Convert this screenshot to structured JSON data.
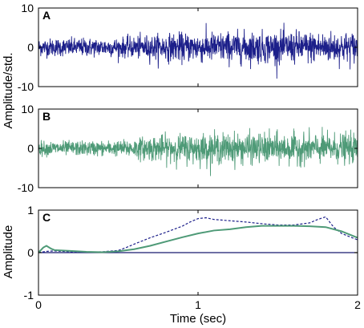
{
  "chart_data": [
    {
      "panel": "A",
      "type": "line",
      "description": "noise trace, amplitude normalized by std; envelope grows after ~0.6 s",
      "color": "#1c1f8a",
      "xlim": [
        0,
        2
      ],
      "ylim": [
        -10,
        10
      ],
      "yticks": [
        -10,
        0,
        10
      ],
      "ytick_labels": [
        "-10",
        "0",
        "10"
      ],
      "envelope_x": [
        0,
        0.5,
        0.7,
        1.0,
        1.5,
        2.0
      ],
      "envelope_y": [
        2.0,
        2.1,
        2.8,
        3.4,
        3.6,
        3.5
      ]
    },
    {
      "panel": "B",
      "type": "line",
      "description": "noise trace, amplitude normalized by std; envelope grows after ~0.6 s",
      "color": "#4e9a77",
      "xlim": [
        0,
        2
      ],
      "ylim": [
        -10,
        10
      ],
      "yticks": [
        -10,
        0,
        10
      ],
      "ytick_labels": [
        "-10",
        "0",
        "10"
      ],
      "envelope_x": [
        0,
        0.5,
        0.7,
        1.0,
        1.5,
        2.0
      ],
      "envelope_y": [
        1.6,
        1.7,
        2.8,
        3.4,
        3.4,
        3.3
      ]
    },
    {
      "panel": "C",
      "type": "line",
      "xlim": [
        0,
        2
      ],
      "ylim": [
        -1,
        1
      ],
      "yticks": [
        -1,
        0,
        1
      ],
      "ytick_labels": [
        "-1",
        "0",
        "1"
      ],
      "xticks": [
        0,
        1,
        2
      ],
      "xtick_labels": [
        "0",
        "1",
        "2"
      ],
      "series": [
        {
          "style": "dashed",
          "color": "#1c1f8a",
          "x": [
            0,
            0.05,
            0.1,
            0.2,
            0.3,
            0.4,
            0.5,
            0.55,
            0.6,
            0.7,
            0.8,
            0.85,
            0.9,
            0.95,
            1.0,
            1.05,
            1.1,
            1.2,
            1.3,
            1.4,
            1.5,
            1.6,
            1.7,
            1.75,
            1.8,
            1.85,
            1.9,
            2.0
          ],
          "y": [
            0.0,
            0.03,
            0.04,
            0.02,
            0.01,
            0.02,
            0.05,
            0.12,
            0.2,
            0.35,
            0.48,
            0.55,
            0.62,
            0.72,
            0.8,
            0.82,
            0.78,
            0.75,
            0.72,
            0.68,
            0.65,
            0.65,
            0.7,
            0.78,
            0.84,
            0.6,
            0.45,
            0.3
          ]
        },
        {
          "style": "solid",
          "color": "#4e9a77",
          "x": [
            0,
            0.03,
            0.05,
            0.08,
            0.1,
            0.2,
            0.3,
            0.4,
            0.5,
            0.6,
            0.7,
            0.8,
            0.9,
            1.0,
            1.1,
            1.2,
            1.3,
            1.4,
            1.5,
            1.6,
            1.7,
            1.8,
            1.9,
            2.0
          ],
          "y": [
            0.0,
            0.12,
            0.16,
            0.09,
            0.06,
            0.04,
            0.02,
            0.01,
            0.03,
            0.08,
            0.16,
            0.26,
            0.36,
            0.45,
            0.52,
            0.55,
            0.6,
            0.63,
            0.63,
            0.63,
            0.62,
            0.6,
            0.5,
            0.35
          ]
        }
      ]
    }
  ],
  "figure": {
    "panel_letters": [
      "A",
      "B",
      "C"
    ],
    "ylabel_top": "Amplitude/std.",
    "ylabel_bottom": "Amplitude",
    "xlabel": "Time (sec)"
  }
}
